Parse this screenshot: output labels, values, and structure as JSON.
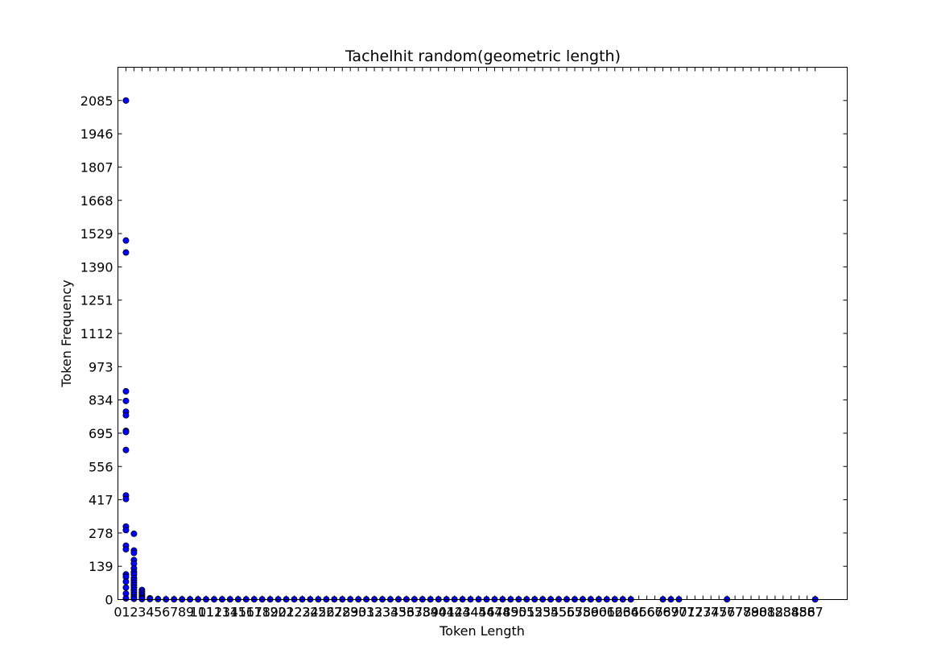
{
  "chart_data": {
    "type": "scatter",
    "title": "Tachelhit random(geometric length)",
    "xlabel": "Token Length",
    "ylabel": "Token Frequency",
    "xlim": [
      0,
      91
    ],
    "ylim": [
      0,
      2224
    ],
    "yticks": [
      0,
      139,
      278,
      417,
      556,
      695,
      834,
      973,
      1112,
      1251,
      1390,
      1529,
      1668,
      1807,
      1946,
      2085
    ],
    "xticks": [
      0,
      1,
      2,
      3,
      4,
      5,
      6,
      7,
      8,
      9,
      10,
      11,
      12,
      13,
      14,
      15,
      16,
      17,
      18,
      19,
      20,
      21,
      22,
      23,
      24,
      25,
      26,
      27,
      28,
      29,
      30,
      31,
      32,
      33,
      34,
      35,
      36,
      37,
      38,
      39,
      40,
      41,
      42,
      43,
      44,
      45,
      46,
      47,
      48,
      49,
      50,
      51,
      52,
      53,
      54,
      55,
      56,
      57,
      58,
      59,
      60,
      61,
      62,
      63,
      64,
      65,
      66,
      67,
      68,
      69,
      70,
      71,
      72,
      73,
      74,
      75,
      76,
      77,
      78,
      79,
      80,
      81,
      82,
      83,
      84,
      85,
      86,
      87
    ],
    "marker_color": "#0000ff",
    "grid": false,
    "points": [
      {
        "x": 1,
        "y": 2085
      },
      {
        "x": 1,
        "y": 1500
      },
      {
        "x": 1,
        "y": 1450
      },
      {
        "x": 1,
        "y": 870
      },
      {
        "x": 1,
        "y": 830
      },
      {
        "x": 1,
        "y": 785
      },
      {
        "x": 1,
        "y": 770
      },
      {
        "x": 1,
        "y": 705
      },
      {
        "x": 1,
        "y": 700
      },
      {
        "x": 1,
        "y": 625
      },
      {
        "x": 1,
        "y": 435
      },
      {
        "x": 1,
        "y": 420
      },
      {
        "x": 1,
        "y": 305
      },
      {
        "x": 1,
        "y": 290
      },
      {
        "x": 1,
        "y": 225
      },
      {
        "x": 1,
        "y": 210
      },
      {
        "x": 1,
        "y": 105
      },
      {
        "x": 1,
        "y": 95
      },
      {
        "x": 1,
        "y": 75
      },
      {
        "x": 1,
        "y": 50
      },
      {
        "x": 1,
        "y": 25
      },
      {
        "x": 1,
        "y": 5
      },
      {
        "x": 2,
        "y": 275
      },
      {
        "x": 2,
        "y": 205
      },
      {
        "x": 2,
        "y": 195
      },
      {
        "x": 2,
        "y": 165
      },
      {
        "x": 2,
        "y": 150
      },
      {
        "x": 2,
        "y": 130
      },
      {
        "x": 2,
        "y": 115
      },
      {
        "x": 2,
        "y": 105
      },
      {
        "x": 2,
        "y": 90
      },
      {
        "x": 2,
        "y": 80
      },
      {
        "x": 2,
        "y": 70
      },
      {
        "x": 2,
        "y": 60
      },
      {
        "x": 2,
        "y": 50
      },
      {
        "x": 2,
        "y": 40
      },
      {
        "x": 2,
        "y": 30
      },
      {
        "x": 2,
        "y": 20
      },
      {
        "x": 2,
        "y": 10
      },
      {
        "x": 2,
        "y": 3
      },
      {
        "x": 3,
        "y": 40
      },
      {
        "x": 3,
        "y": 32
      },
      {
        "x": 3,
        "y": 25
      },
      {
        "x": 3,
        "y": 18
      },
      {
        "x": 3,
        "y": 10
      },
      {
        "x": 3,
        "y": 5
      },
      {
        "x": 3,
        "y": 2
      },
      {
        "x": 4,
        "y": 5
      },
      {
        "x": 4,
        "y": 2
      },
      {
        "x": 5,
        "y": 2
      },
      {
        "x": 6,
        "y": 1
      },
      {
        "x": 7,
        "y": 1
      },
      {
        "x": 8,
        "y": 1
      },
      {
        "x": 9,
        "y": 1
      },
      {
        "x": 10,
        "y": 1
      },
      {
        "x": 11,
        "y": 1
      },
      {
        "x": 12,
        "y": 1
      },
      {
        "x": 13,
        "y": 1
      },
      {
        "x": 14,
        "y": 1
      },
      {
        "x": 15,
        "y": 1
      },
      {
        "x": 16,
        "y": 1
      },
      {
        "x": 17,
        "y": 1
      },
      {
        "x": 18,
        "y": 1
      },
      {
        "x": 19,
        "y": 1
      },
      {
        "x": 20,
        "y": 1
      },
      {
        "x": 21,
        "y": 1
      },
      {
        "x": 22,
        "y": 1
      },
      {
        "x": 23,
        "y": 1
      },
      {
        "x": 24,
        "y": 1
      },
      {
        "x": 25,
        "y": 1
      },
      {
        "x": 26,
        "y": 1
      },
      {
        "x": 27,
        "y": 1
      },
      {
        "x": 28,
        "y": 1
      },
      {
        "x": 29,
        "y": 1
      },
      {
        "x": 30,
        "y": 1
      },
      {
        "x": 31,
        "y": 1
      },
      {
        "x": 32,
        "y": 1
      },
      {
        "x": 33,
        "y": 1
      },
      {
        "x": 34,
        "y": 1
      },
      {
        "x": 35,
        "y": 1
      },
      {
        "x": 36,
        "y": 1
      },
      {
        "x": 37,
        "y": 1
      },
      {
        "x": 38,
        "y": 1
      },
      {
        "x": 39,
        "y": 1
      },
      {
        "x": 40,
        "y": 1
      },
      {
        "x": 41,
        "y": 1
      },
      {
        "x": 42,
        "y": 1
      },
      {
        "x": 43,
        "y": 1
      },
      {
        "x": 44,
        "y": 1
      },
      {
        "x": 45,
        "y": 1
      },
      {
        "x": 46,
        "y": 1
      },
      {
        "x": 47,
        "y": 1
      },
      {
        "x": 48,
        "y": 1
      },
      {
        "x": 49,
        "y": 1
      },
      {
        "x": 50,
        "y": 1
      },
      {
        "x": 51,
        "y": 1
      },
      {
        "x": 52,
        "y": 1
      },
      {
        "x": 53,
        "y": 1
      },
      {
        "x": 54,
        "y": 1
      },
      {
        "x": 55,
        "y": 1
      },
      {
        "x": 56,
        "y": 1
      },
      {
        "x": 57,
        "y": 1
      },
      {
        "x": 58,
        "y": 1
      },
      {
        "x": 59,
        "y": 1
      },
      {
        "x": 60,
        "y": 1
      },
      {
        "x": 61,
        "y": 1
      },
      {
        "x": 62,
        "y": 1
      },
      {
        "x": 63,
        "y": 1
      },
      {
        "x": 64,
        "y": 1
      },
      {
        "x": 68,
        "y": 1
      },
      {
        "x": 69,
        "y": 1
      },
      {
        "x": 70,
        "y": 1
      },
      {
        "x": 76,
        "y": 1
      },
      {
        "x": 87,
        "y": 1
      }
    ]
  }
}
